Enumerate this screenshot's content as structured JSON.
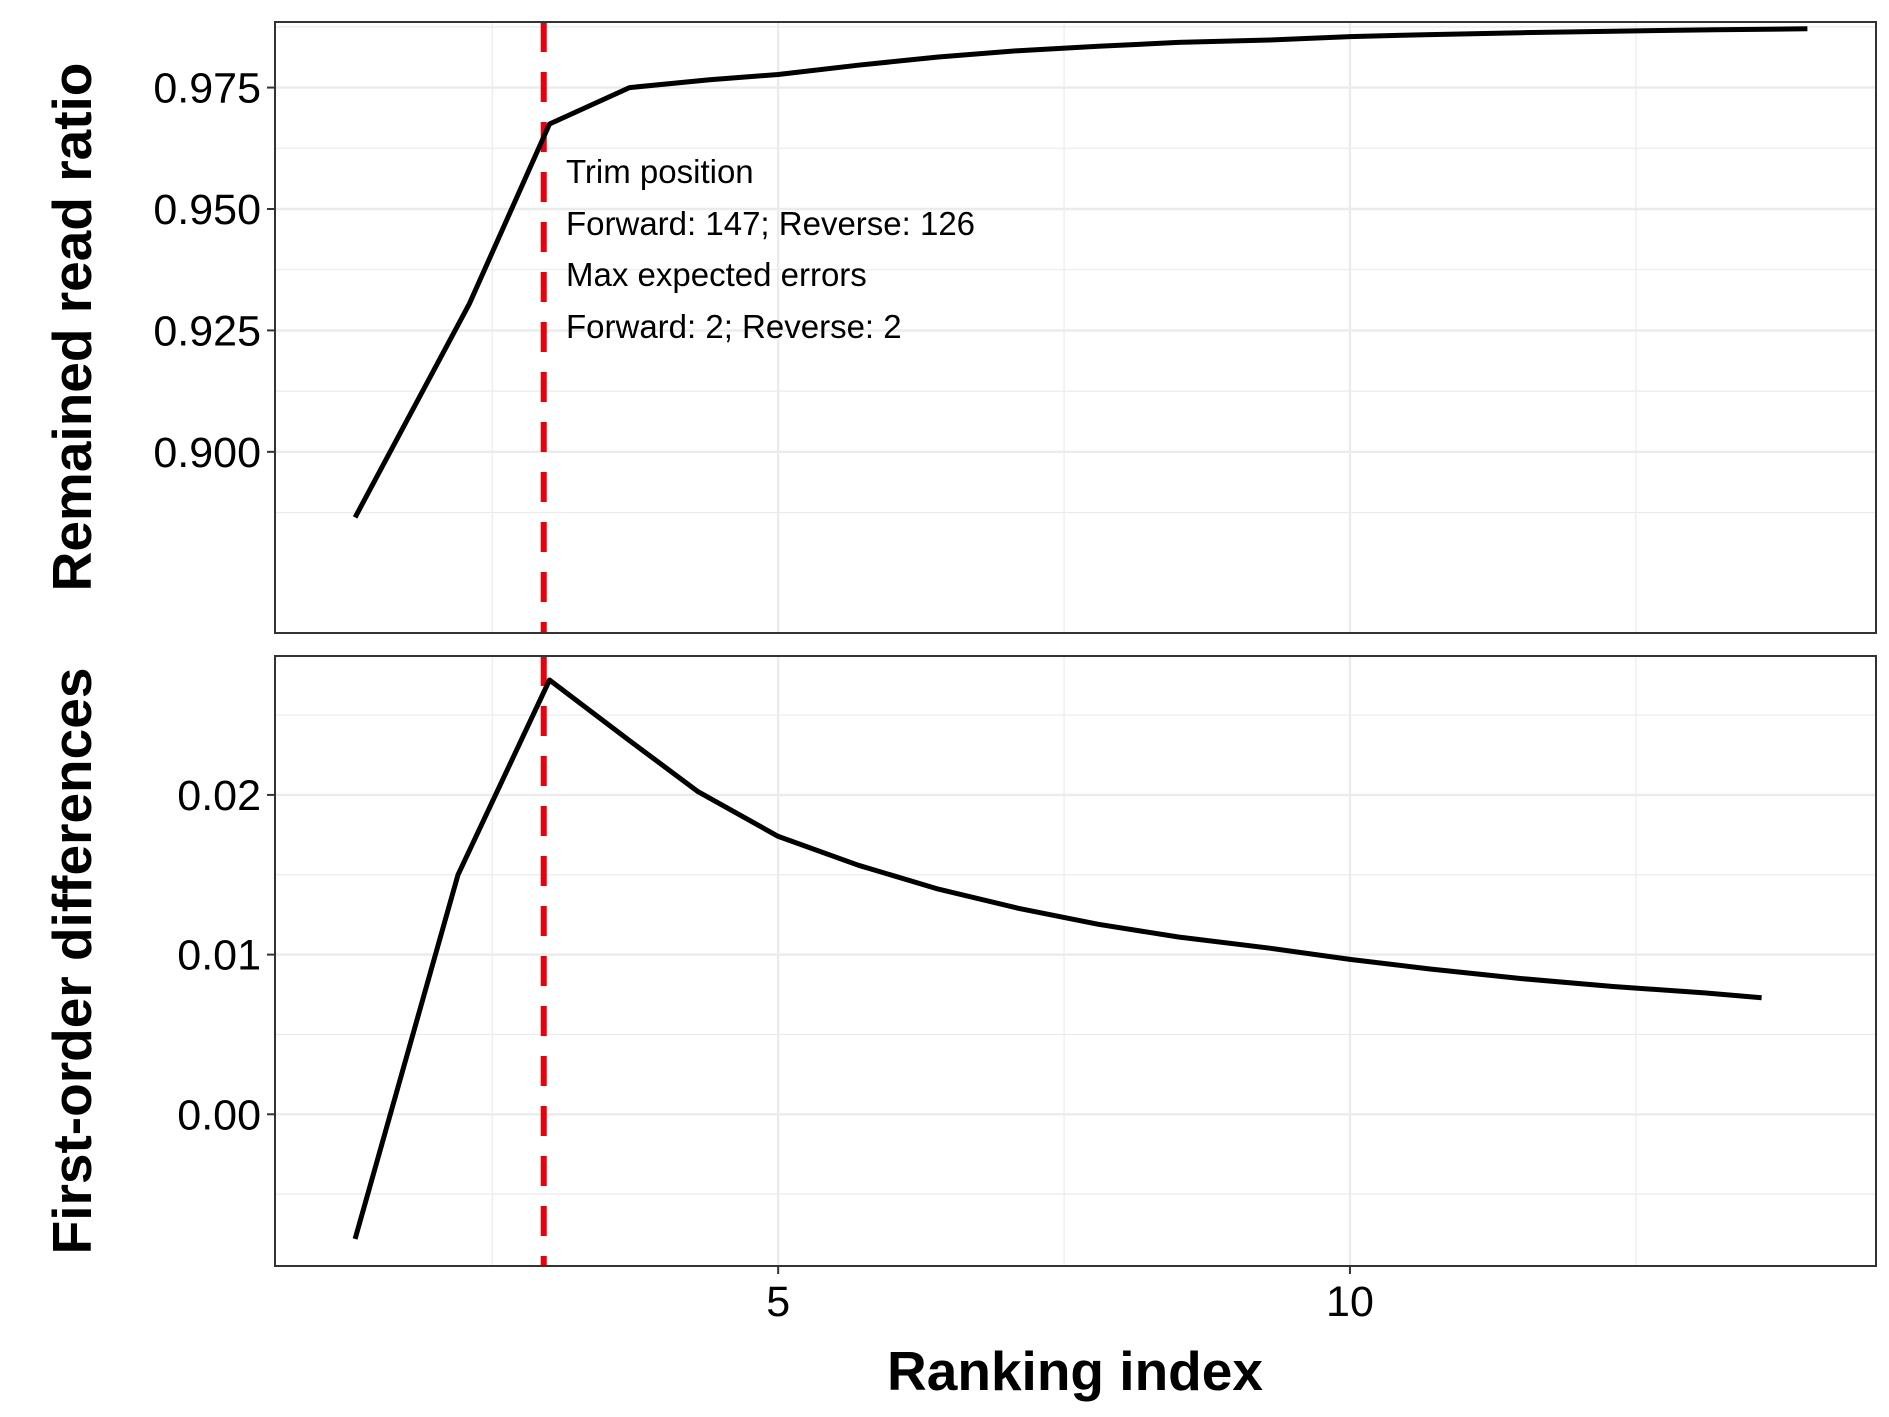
{
  "chart_data": [
    {
      "type": "line",
      "panel": "top",
      "title": "",
      "xlabel": "",
      "ylabel": "Remained read ratio",
      "xlim": [
        0.6,
        14.6
      ],
      "ylim": [
        0.8627,
        0.9885
      ],
      "x_ticks": [
        5,
        10
      ],
      "x_tick_labels": [
        "",
        ""
      ],
      "y_ticks": [
        0.9,
        0.925,
        0.95,
        0.975
      ],
      "y_tick_labels": [
        "0.900",
        "0.925",
        "0.950",
        "0.975"
      ],
      "grid": true,
      "vline": {
        "x": 2.95,
        "color": "#e8000b",
        "style": "dashed"
      },
      "annotations": [
        "Trim position",
        "Forward: 147; Reverse: 126",
        "Max expected errors",
        "Forward: 2; Reverse: 2"
      ],
      "series": [
        {
          "x": [
            1.3,
            2.3,
            3.0,
            3.7,
            4.4,
            5.0,
            5.7,
            6.4,
            7.1,
            7.8,
            8.5,
            9.3,
            10.0,
            10.7,
            11.5,
            12.3,
            13.2,
            14.0
          ],
          "values": [
            0.8865,
            0.9305,
            0.9675,
            0.975,
            0.9766,
            0.9777,
            0.9796,
            0.9813,
            0.9826,
            0.9835,
            0.9843,
            0.9848,
            0.9855,
            0.9859,
            0.9863,
            0.9866,
            0.9869,
            0.9871
          ]
        }
      ]
    },
    {
      "type": "line",
      "panel": "bottom",
      "title": "",
      "xlabel": "Ranking index",
      "ylabel": "First-order differences",
      "xlim": [
        0.6,
        14.6
      ],
      "ylim": [
        -0.0095,
        0.0287
      ],
      "x_ticks": [
        5,
        10
      ],
      "x_tick_labels": [
        "5",
        "10"
      ],
      "y_ticks": [
        0.0,
        0.01,
        0.02
      ],
      "y_tick_labels": [
        "0.00",
        "0.01",
        "0.02"
      ],
      "grid": true,
      "vline": {
        "x": 2.95,
        "color": "#e8000b",
        "style": "dashed"
      },
      "series": [
        {
          "x": [
            1.3,
            2.2,
            3.0,
            3.7,
            4.3,
            5.0,
            5.7,
            6.4,
            7.1,
            7.8,
            8.5,
            9.3,
            10.0,
            10.7,
            11.5,
            12.3,
            13.1,
            13.6
          ],
          "values": [
            -0.0078,
            0.015,
            0.0272,
            0.0234,
            0.0202,
            0.0174,
            0.0156,
            0.0141,
            0.0129,
            0.0119,
            0.0111,
            0.0104,
            0.0097,
            0.0091,
            0.0085,
            0.008,
            0.0076,
            0.0073
          ]
        }
      ]
    }
  ]
}
